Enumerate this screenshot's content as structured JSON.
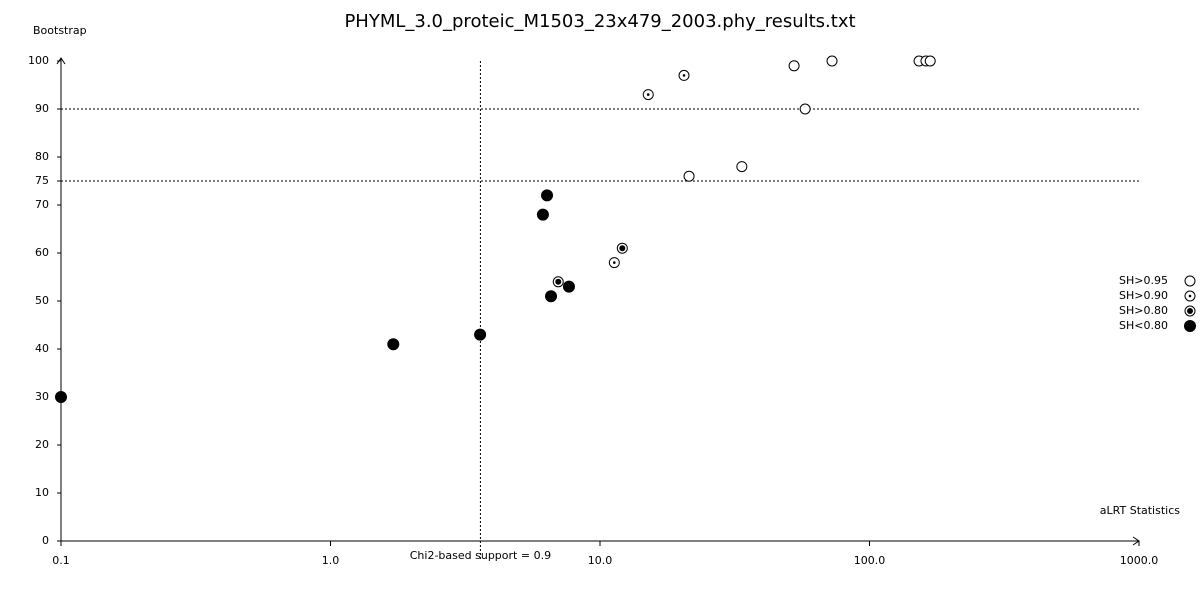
{
  "chart_data": {
    "type": "scatter",
    "title": "PHYML_3.0_proteic_M1503_23x479_2003.phy_results.txt",
    "y_label": "Bootstrap",
    "x_label": "aLRT Statistics",
    "x_scale": "log",
    "xlim": [
      0.1,
      1000
    ],
    "xticks": [
      {
        "value": 0.1,
        "label": "0.1"
      },
      {
        "value": 1,
        "label": "1.0"
      },
      {
        "value": 10,
        "label": "10.0"
      },
      {
        "value": 100,
        "label": "100.0"
      },
      {
        "value": 1000,
        "label": "1000.0"
      }
    ],
    "ylim": [
      0,
      100
    ],
    "yticks": [
      0,
      10,
      20,
      30,
      40,
      50,
      60,
      70,
      75,
      80,
      90,
      100
    ],
    "hlines": [
      90,
      75
    ],
    "vline": {
      "value": 3.6,
      "label": "Chi2-based support = 0.9"
    },
    "series": [
      {
        "name": "SH>0.95",
        "marker": "open",
        "color": "#000000",
        "x": [
          52.5,
          72.6,
          152.7,
          162,
          168,
          57.7,
          33.6,
          21.4
        ],
        "values": [
          99,
          100,
          100,
          100,
          100,
          90,
          78,
          76
        ]
      },
      {
        "name": "SH>0.90",
        "marker": "dot",
        "color": "#000000",
        "x": [
          20.5,
          15.1,
          11.3
        ],
        "values": [
          97,
          93,
          58
        ]
      },
      {
        "name": "SH>0.80",
        "marker": "ring",
        "color": "#000000",
        "x": [
          12.1,
          7.0
        ],
        "values": [
          61,
          54
        ]
      },
      {
        "name": "SH<0.80",
        "marker": "filled",
        "color": "#000000",
        "x": [
          6.36,
          6.14,
          6.58,
          7.67,
          3.59,
          1.71,
          0.1
        ],
        "values": [
          72,
          68,
          51,
          53,
          43,
          41,
          30
        ]
      }
    ]
  }
}
